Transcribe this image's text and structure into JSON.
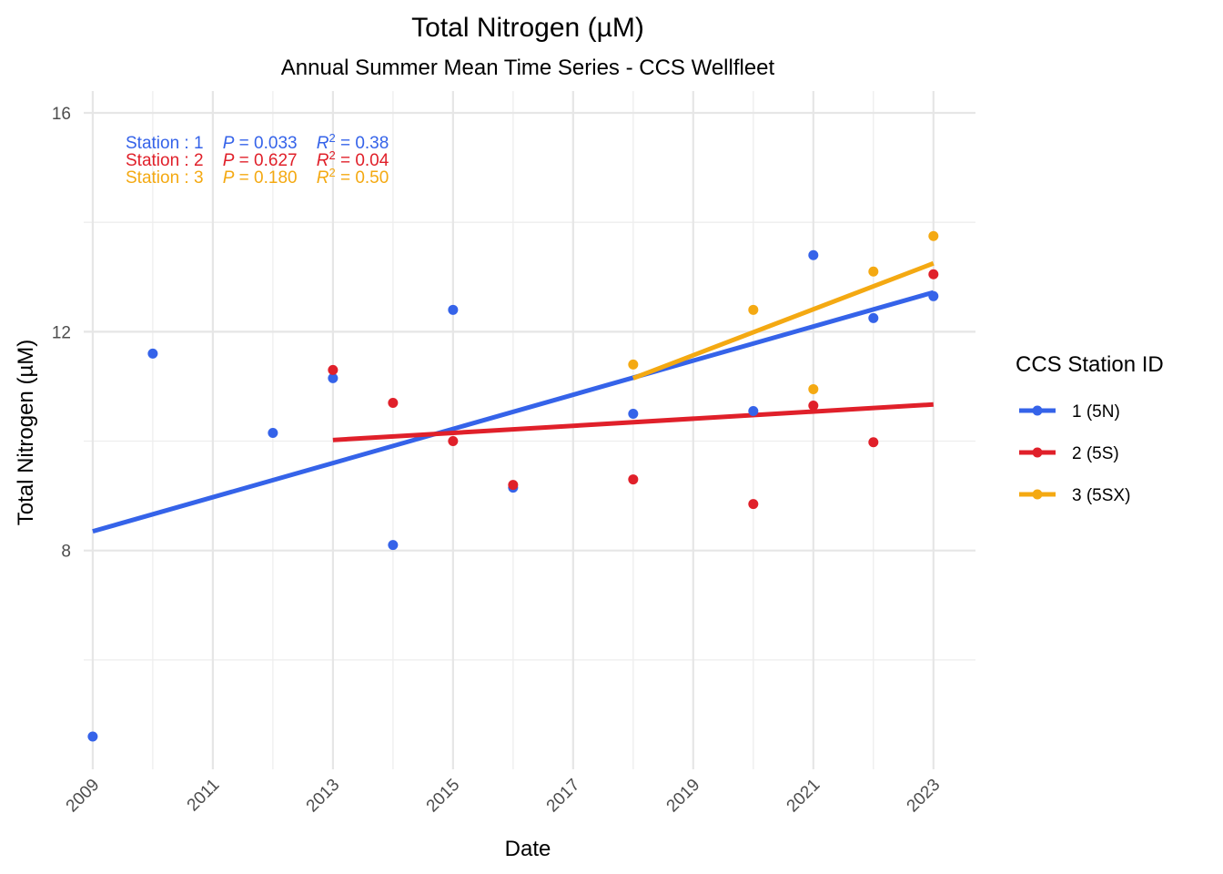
{
  "chart_data": {
    "type": "scatter",
    "title": "Total Nitrogen (µM)",
    "subtitle": "Annual Summer Mean Time Series - CCS Wellfleet",
    "xlabel": "Date",
    "ylabel": "Total Nitrogen (µM)",
    "x_ticks": [
      "2009",
      "2011",
      "2013",
      "2015",
      "2017",
      "2019",
      "2021",
      "2023"
    ],
    "y_ticks": [
      "8",
      "12",
      "16"
    ],
    "xlim": [
      2008.85,
      2023.7
    ],
    "ylim": [
      4.0,
      16.4
    ],
    "grid": true,
    "legend": {
      "title": "CCS Station ID",
      "position": "right"
    },
    "series": [
      {
        "name": "1 (5N)",
        "color": "#3563E9",
        "points": [
          {
            "x": 2009,
            "y": 4.6
          },
          {
            "x": 2010,
            "y": 11.6
          },
          {
            "x": 2012,
            "y": 10.15
          },
          {
            "x": 2013,
            "y": 11.15
          },
          {
            "x": 2014,
            "y": 8.1
          },
          {
            "x": 2015,
            "y": 12.4
          },
          {
            "x": 2016,
            "y": 9.15
          },
          {
            "x": 2018,
            "y": 10.5
          },
          {
            "x": 2020,
            "y": 10.55
          },
          {
            "x": 2021,
            "y": 13.4
          },
          {
            "x": 2022,
            "y": 12.25
          },
          {
            "x": 2023,
            "y": 12.65
          }
        ],
        "trend": {
          "x": [
            2009,
            2023
          ],
          "y": [
            8.35,
            12.72
          ]
        },
        "stat_label": {
          "station": "1",
          "p": "0.033",
          "r2": "0.38"
        }
      },
      {
        "name": "2 (5S)",
        "color": "#E0202A",
        "points": [
          {
            "x": 2013,
            "y": 11.3
          },
          {
            "x": 2014,
            "y": 10.7
          },
          {
            "x": 2015,
            "y": 10.0
          },
          {
            "x": 2016,
            "y": 9.2
          },
          {
            "x": 2018,
            "y": 9.3
          },
          {
            "x": 2020,
            "y": 8.85
          },
          {
            "x": 2021,
            "y": 10.65
          },
          {
            "x": 2022,
            "y": 9.98
          },
          {
            "x": 2023,
            "y": 13.05
          }
        ],
        "trend": {
          "x": [
            2013,
            2023
          ],
          "y": [
            10.02,
            10.67
          ]
        },
        "stat_label": {
          "station": "2",
          "p": "0.627",
          "r2": "0.04"
        }
      },
      {
        "name": "3 (5SX)",
        "color": "#F4A912",
        "points": [
          {
            "x": 2018,
            "y": 11.4
          },
          {
            "x": 2020,
            "y": 12.4
          },
          {
            "x": 2021,
            "y": 10.95
          },
          {
            "x": 2022,
            "y": 13.1
          },
          {
            "x": 2023,
            "y": 13.75
          }
        ],
        "trend": {
          "x": [
            2018,
            2023
          ],
          "y": [
            11.15,
            13.25
          ]
        },
        "stat_label": {
          "station": "3",
          "p": "0.180",
          "r2": "0.50"
        }
      }
    ]
  }
}
